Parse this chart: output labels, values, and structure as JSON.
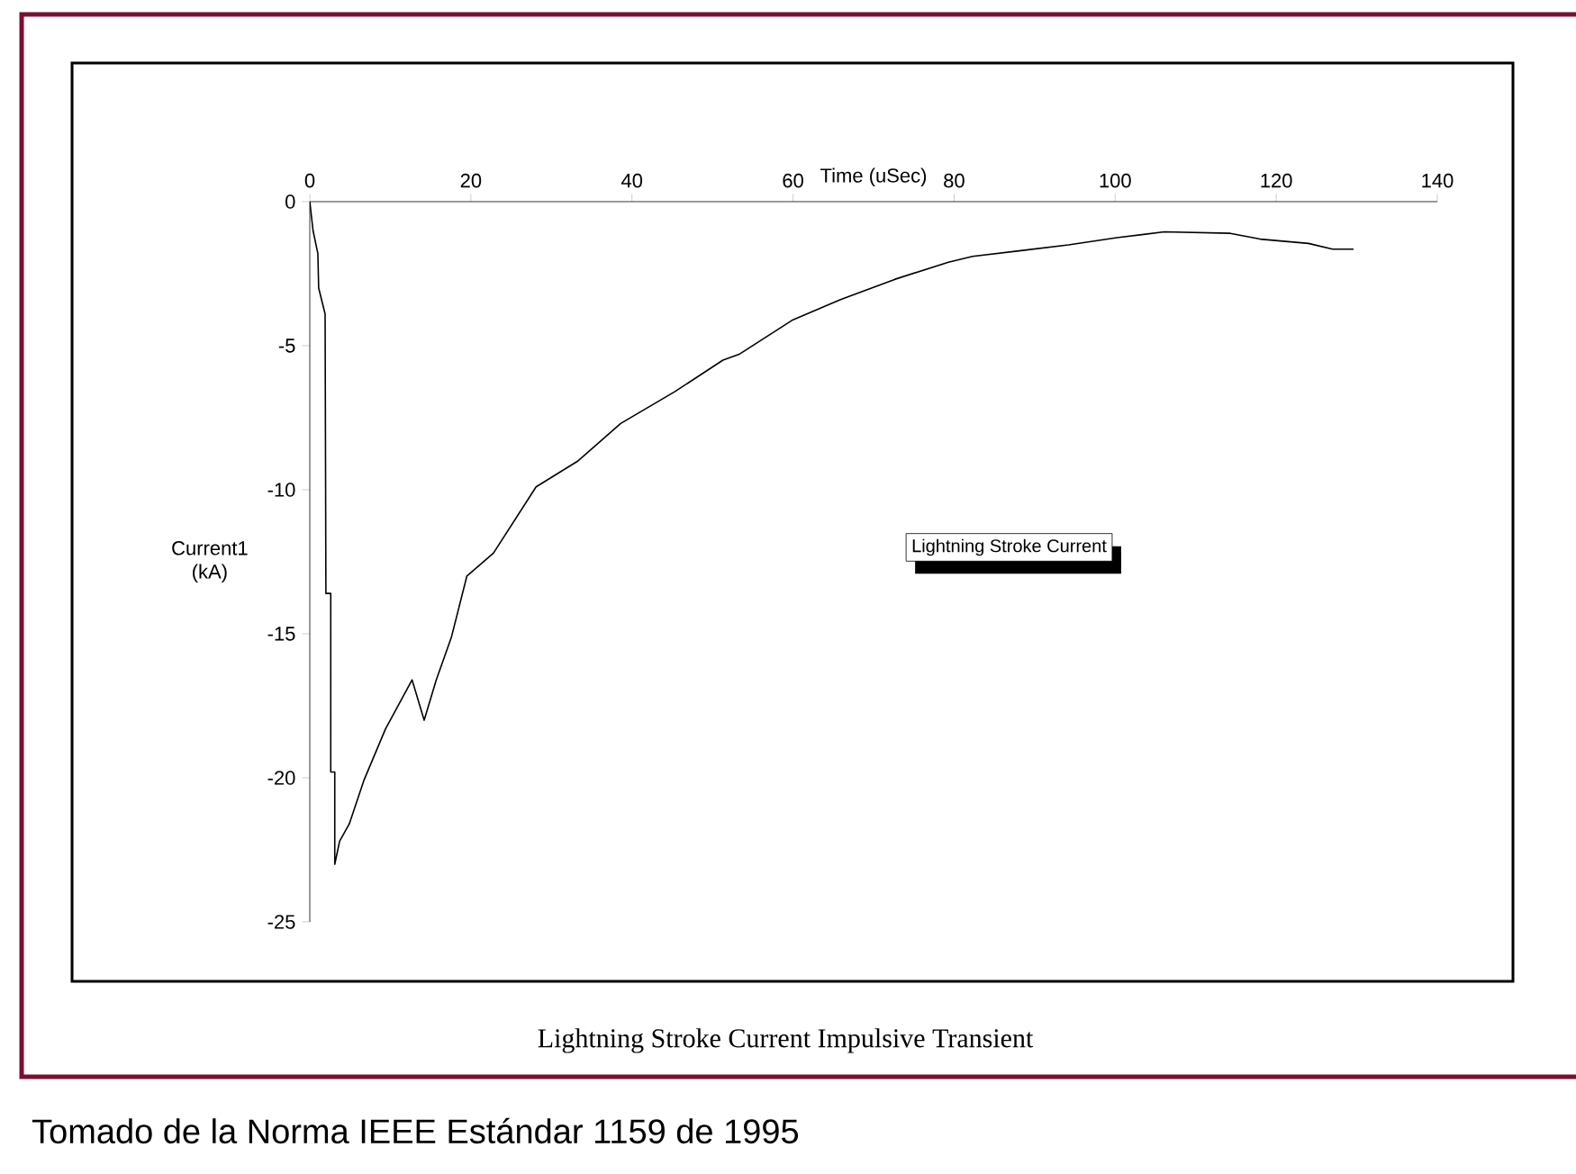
{
  "chart_data": {
    "type": "line",
    "xlabel": "Time (uSec)",
    "ylabel": "Current1 (kA)",
    "annotations": [
      "Lightning Stroke Current Impulsive Transient",
      "Tomado de la Norma IEEE Estándar 1159 de 1995"
    ],
    "xlim": [
      0,
      140
    ],
    "ylim": [
      -25,
      0
    ],
    "xticks": [
      0,
      20,
      40,
      60,
      80,
      100,
      120,
      140
    ],
    "yticks": [
      -25,
      -20,
      -15,
      -10,
      -5,
      0
    ],
    "grid": false,
    "marker": "none",
    "line_style": "solid",
    "series": [
      {
        "name": "Lightning Stroke Current",
        "color": "#000000",
        "x": [
          0,
          0.4,
          1.0,
          1.1,
          1.9,
          2.0,
          2.6,
          2.6,
          3.1,
          3.1,
          3.7,
          4.9,
          6.7,
          9.4,
          12.7,
          14.2,
          15.7,
          17.6,
          19.5,
          22.8,
          28.1,
          33.3,
          38.6,
          45.3,
          51.3,
          53.3,
          60,
          65.9,
          72.6,
          79.3,
          82.3,
          88.3,
          94.2,
          100.2,
          106.1,
          114.3,
          118,
          124,
          127,
          129.6
        ],
        "values": [
          0,
          -1.0,
          -1.8,
          -3.0,
          -3.9,
          -13.6,
          -13.6,
          -19.8,
          -19.8,
          -23.0,
          -22.2,
          -21.6,
          -20.1,
          -18.3,
          -16.6,
          -18.0,
          -16.6,
          -15.1,
          -13.0,
          -12.2,
          -9.9,
          -9.0,
          -7.7,
          -6.6,
          -5.5,
          -5.3,
          -4.1,
          -3.4,
          -2.7,
          -2.1,
          -1.9,
          -1.7,
          -1.5,
          -1.25,
          -1.05,
          -1.1,
          -1.3,
          -1.45,
          -1.65,
          -1.65
        ]
      }
    ]
  }
}
